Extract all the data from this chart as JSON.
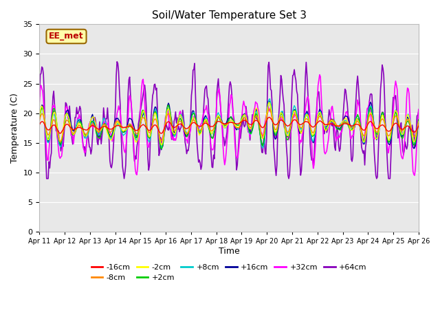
{
  "title": "Soil/Water Temperature Set 3",
  "xlabel": "Time",
  "ylabel": "Temperature (C)",
  "ylim": [
    0,
    35
  ],
  "yticks": [
    0,
    5,
    10,
    15,
    20,
    25,
    30,
    35
  ],
  "x_labels": [
    "Apr 11",
    "Apr 12",
    "Apr 13",
    "Apr 14",
    "Apr 15",
    "Apr 16",
    "Apr 17",
    "Apr 18",
    "Apr 19",
    "Apr 20",
    "Apr 21",
    "Apr 22",
    "Apr 23",
    "Apr 24",
    "Apr 25",
    "Apr 26"
  ],
  "series": [
    {
      "label": "-16cm",
      "color": "#ff0000"
    },
    {
      "label": "-8cm",
      "color": "#ff8800"
    },
    {
      "label": "-2cm",
      "color": "#ffff00"
    },
    {
      "label": "+2cm",
      "color": "#00cc00"
    },
    {
      "label": "+8cm",
      "color": "#00cccc"
    },
    {
      "label": "+16cm",
      "color": "#000099"
    },
    {
      "label": "+32cm",
      "color": "#ff00ff"
    },
    {
      "label": "+64cm",
      "color": "#8800bb"
    }
  ],
  "annotation_text": "EE_met",
  "annotation_color": "#bb0000",
  "annotation_bg": "#ffffaa",
  "plot_bg": "#e8e8e8",
  "n_points": 480
}
